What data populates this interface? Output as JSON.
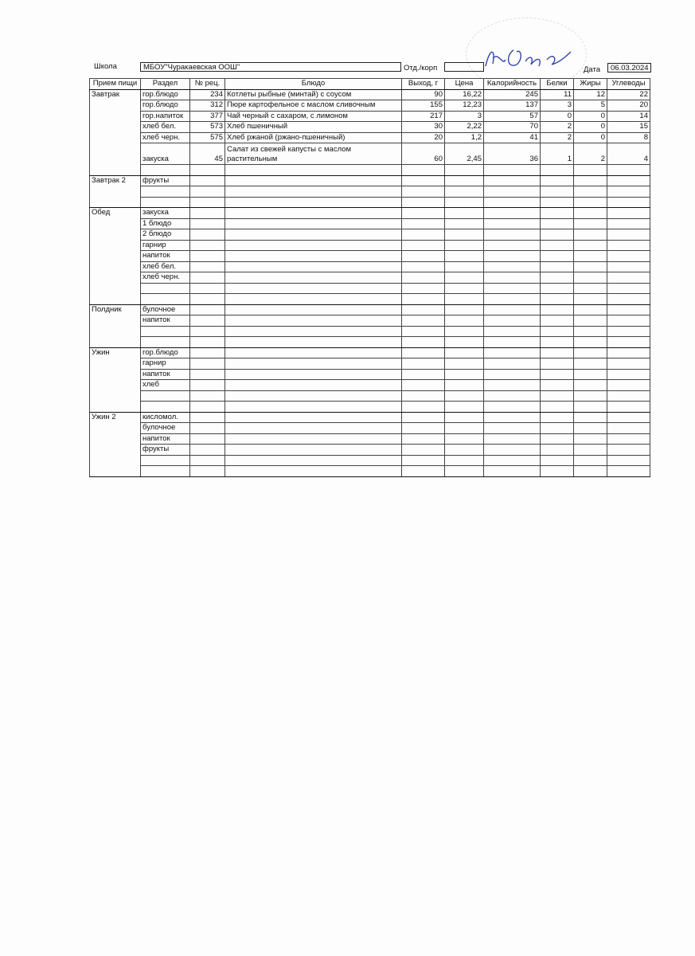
{
  "header": {
    "school_label": "Школа",
    "school_value": "МБОУ\"Чуракаевская ООШ\"",
    "dept_label": "Отд./корп",
    "dept_value": "",
    "date_label": "Дата",
    "date_value": "06.03.2024"
  },
  "columns": [
    "Прием пищи",
    "Раздел",
    "№ рец.",
    "Блюдо",
    "Выход, г",
    "Цена",
    "Калорийность",
    "Белки",
    "Жиры",
    "Углеводы"
  ],
  "meals": [
    {
      "name": "Завтрак",
      "rows": [
        [
          "гор.блюдо",
          "234",
          "Котлеты рыбные (минтай) с соусом",
          "90",
          "16,22",
          "245",
          "11",
          "12",
          "22"
        ],
        [
          "гор.блюдо",
          "312",
          "Пюре картофельное с маслом сливочным",
          "155",
          "12,23",
          "137",
          "3",
          "5",
          "20"
        ],
        [
          "гор.напиток",
          "377",
          "Чай черный с сахаром, с лимоном",
          "217",
          "3",
          "57",
          "0",
          "0",
          "14"
        ],
        [
          "хлеб бел.",
          "573",
          "Хлеб пшеничный",
          "30",
          "2,22",
          "70",
          "2",
          "0",
          "15"
        ],
        [
          "хлеб черн.",
          "575",
          "Хлеб ржаной (ржано-пшеничный)",
          "20",
          "1,2",
          "41",
          "2",
          "0",
          "8"
        ],
        [
          "закуска",
          "45",
          "Салат из свежей капусты с маслом растительным",
          "60",
          "2,45",
          "36",
          "1",
          "2",
          "4"
        ],
        [
          "",
          "",
          "",
          "",
          "",
          "",
          "",
          "",
          ""
        ]
      ]
    },
    {
      "name": "Завтрак 2",
      "rows": [
        [
          "фрукты"
        ],
        [
          ""
        ],
        [
          ""
        ]
      ]
    },
    {
      "name": "Обед",
      "rows": [
        [
          "закуска"
        ],
        [
          "1 блюдо"
        ],
        [
          "2 блюдо"
        ],
        [
          "гарнир"
        ],
        [
          "напиток"
        ],
        [
          "хлеб бел."
        ],
        [
          "хлеб черн."
        ],
        [
          ""
        ],
        [
          ""
        ]
      ]
    },
    {
      "name": "Полдник",
      "rows": [
        [
          "булочное"
        ],
        [
          "напиток"
        ],
        [
          ""
        ],
        [
          ""
        ]
      ]
    },
    {
      "name": "Ужин",
      "rows": [
        [
          "гор.блюдо"
        ],
        [
          "гарнир"
        ],
        [
          "напиток"
        ],
        [
          "хлеб"
        ],
        [
          ""
        ],
        [
          ""
        ]
      ]
    },
    {
      "name": "Ужин 2",
      "rows": [
        [
          "кисломол."
        ],
        [
          "булочное"
        ],
        [
          "напиток"
        ],
        [
          "фрукты"
        ],
        [
          ""
        ],
        [
          ""
        ]
      ]
    }
  ]
}
